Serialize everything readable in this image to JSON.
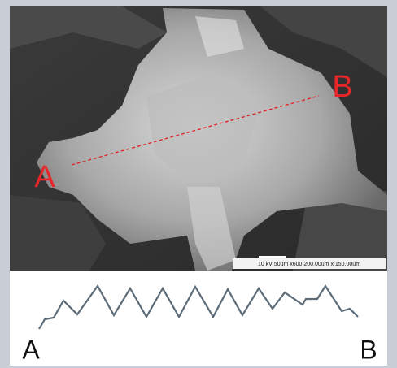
{
  "micrograph": {
    "label_start": "A",
    "label_end": "B",
    "scale_bar": "10 kV   50um   x600   200.00um x 150.00um"
  },
  "profile": {
    "label_start": "A",
    "label_end": "B"
  }
}
